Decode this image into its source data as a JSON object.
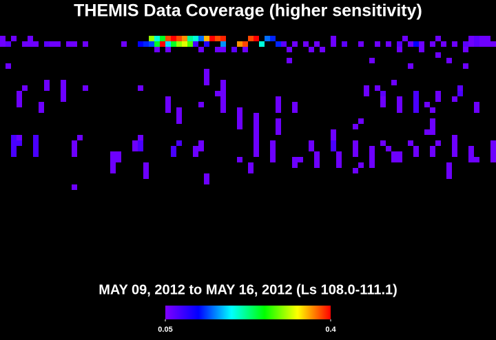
{
  "chart_data": {
    "type": "heatmap",
    "title": "THEMIS Data Coverage (higher sensitivity)",
    "subtitle": "MAY 09, 2012 to MAY 16, 2012 (Ls 108.0-111.1)",
    "clim": [
      0.05,
      0.4
    ],
    "cticks": [
      0.05,
      0.4
    ],
    "colormap": [
      "#7f00ff",
      "#0000ff",
      "#00ffff",
      "#00ff00",
      "#ffff00",
      "#ff0000"
    ],
    "rows": [
      {
        "y": 0,
        "x": [
          0,
          2,
          5,
          27,
          28,
          29,
          30,
          31,
          32,
          33,
          34,
          35,
          36,
          37,
          38,
          39,
          40,
          45,
          46,
          48,
          49,
          60,
          73,
          79,
          85,
          86,
          87,
          88
        ],
        "values": [
          0.06,
          0.06,
          0.06,
          0.3,
          0.2,
          0.25,
          0.38,
          0.4,
          0.38,
          0.36,
          0.22,
          0.2,
          0.15,
          0.35,
          0.4,
          0.38,
          0.39,
          0.38,
          0.4,
          0.15,
          0.13,
          0.06,
          0.06,
          0.06,
          0.06,
          0.07,
          0.06,
          0.06
        ]
      },
      {
        "y": 1,
        "x": [
          0,
          1,
          4,
          5,
          6,
          8,
          9,
          10,
          12,
          13,
          15,
          22,
          25,
          26,
          27,
          28,
          29,
          30,
          31,
          32,
          33,
          34,
          35,
          37,
          40,
          43,
          44,
          47,
          50,
          51,
          53,
          55,
          57,
          60,
          62,
          65,
          68,
          70,
          72,
          74,
          75,
          76,
          78,
          80,
          82,
          84,
          85,
          86,
          87,
          88,
          89
        ],
        "values": [
          0.06,
          0.07,
          0.06,
          0.06,
          0.06,
          0.07,
          0.06,
          0.06,
          0.06,
          0.06,
          0.06,
          0.06,
          0.12,
          0.13,
          0.14,
          0.25,
          0.4,
          0.18,
          0.25,
          0.3,
          0.32,
          0.28,
          0.08,
          0.1,
          0.16,
          0.36,
          0.38,
          0.2,
          0.13,
          0.07,
          0.06,
          0.06,
          0.06,
          0.06,
          0.07,
          0.06,
          0.06,
          0.06,
          0.07,
          0.06,
          0.12,
          0.06,
          0.06,
          0.06,
          0.06,
          0.07,
          0.06,
          0.07,
          0.06,
          0.06,
          0.06
        ]
      },
      {
        "y": 2,
        "x": [
          28,
          30,
          36,
          39,
          40,
          42,
          44,
          52,
          56,
          58,
          72,
          76,
          84
        ],
        "values": [
          0.06,
          0.06,
          0.06,
          0.06,
          0.06,
          0.07,
          0.06,
          0.06,
          0.06,
          0.06,
          0.06,
          0.06,
          0.06
        ]
      },
      {
        "y": 3,
        "x": [
          79
        ],
        "values": [
          0.06
        ]
      },
      {
        "y": 4,
        "x": [
          52,
          67,
          81
        ],
        "values": [
          0.06,
          0.06,
          0.06
        ]
      },
      {
        "y": 5,
        "x": [
          1,
          74,
          84
        ],
        "values": [
          0.06,
          0.06,
          0.06
        ]
      },
      {
        "y": 6,
        "x": [
          37
        ],
        "values": [
          0.06
        ]
      },
      {
        "y": 7,
        "x": [
          37
        ],
        "values": [
          0.06
        ]
      },
      {
        "y": 8,
        "x": [
          8,
          11,
          37,
          40,
          71
        ],
        "values": [
          0.06,
          0.06,
          0.06,
          0.06,
          0.06
        ]
      },
      {
        "y": 9,
        "x": [
          4,
          8,
          11,
          15,
          25,
          40,
          66,
          68,
          83
        ],
        "values": [
          0.06,
          0.06,
          0.06,
          0.06,
          0.06,
          0.06,
          0.06,
          0.06,
          0.07
        ]
      },
      {
        "y": 10,
        "x": [
          3,
          11,
          39,
          40,
          66,
          69,
          75,
          79,
          83
        ],
        "values": [
          0.06,
          0.06,
          0.06,
          0.06,
          0.06,
          0.07,
          0.08,
          0.06,
          0.08
        ]
      },
      {
        "y": 11,
        "x": [
          3,
          11,
          30,
          40,
          50,
          69,
          72,
          75,
          79,
          82
        ],
        "values": [
          0.06,
          0.06,
          0.06,
          0.06,
          0.06,
          0.06,
          0.06,
          0.08,
          0.06,
          0.06
        ]
      },
      {
        "y": 12,
        "x": [
          3,
          7,
          30,
          36,
          40,
          50,
          53,
          69,
          72,
          75,
          77,
          86
        ],
        "values": [
          0.06,
          0.06,
          0.06,
          0.06,
          0.06,
          0.06,
          0.06,
          0.06,
          0.06,
          0.08,
          0.06,
          0.06
        ]
      },
      {
        "y": 13,
        "x": [
          7,
          30,
          32,
          40,
          43,
          50,
          53,
          72,
          75,
          78,
          86
        ],
        "values": [
          0.06,
          0.06,
          0.06,
          0.06,
          0.06,
          0.06,
          0.06,
          0.06,
          0.08,
          0.06,
          0.06
        ]
      },
      {
        "y": 14,
        "x": [
          32,
          43,
          46
        ],
        "values": [
          0.06,
          0.06,
          0.06
        ]
      },
      {
        "y": 15,
        "x": [
          32,
          43,
          46,
          50,
          65,
          78
        ],
        "values": [
          0.06,
          0.06,
          0.06,
          0.06,
          0.06,
          0.06
        ]
      },
      {
        "y": 16,
        "x": [
          43,
          46,
          50,
          64,
          78
        ],
        "values": [
          0.06,
          0.06,
          0.06,
          0.06,
          0.06
        ]
      },
      {
        "y": 17,
        "x": [
          46,
          50,
          60,
          77,
          78
        ],
        "values": [
          0.06,
          0.06,
          0.06,
          0.06,
          0.06
        ]
      },
      {
        "y": 18,
        "x": [
          2,
          3,
          6,
          14,
          25,
          46,
          60,
          82
        ],
        "values": [
          0.08,
          0.06,
          0.08,
          0.06,
          0.06,
          0.06,
          0.06,
          0.06
        ]
      },
      {
        "y": 19,
        "x": [
          2,
          3,
          6,
          13,
          24,
          25,
          32,
          36,
          46,
          49,
          56,
          60,
          64,
          69,
          74,
          79,
          82,
          89
        ],
        "values": [
          0.08,
          0.08,
          0.08,
          0.06,
          0.06,
          0.08,
          0.08,
          0.06,
          0.06,
          0.06,
          0.06,
          0.08,
          0.06,
          0.06,
          0.06,
          0.06,
          0.06,
          0.06
        ]
      },
      {
        "y": 20,
        "x": [
          2,
          6,
          13,
          24,
          25,
          31,
          35,
          36,
          46,
          49,
          56,
          60,
          64,
          67,
          70,
          75,
          78,
          82,
          85,
          89
        ],
        "values": [
          0.08,
          0.08,
          0.06,
          0.06,
          0.08,
          0.08,
          0.06,
          0.06,
          0.06,
          0.06,
          0.06,
          0.08,
          0.06,
          0.06,
          0.06,
          0.06,
          0.06,
          0.06,
          0.06,
          0.06
        ]
      },
      {
        "y": 21,
        "x": [
          2,
          6,
          13,
          20,
          21,
          31,
          35,
          46,
          49,
          57,
          61,
          64,
          67,
          71,
          72,
          75,
          78,
          82,
          85,
          89
        ],
        "values": [
          0.08,
          0.08,
          0.06,
          0.06,
          0.06,
          0.08,
          0.06,
          0.06,
          0.06,
          0.06,
          0.06,
          0.06,
          0.06,
          0.06,
          0.06,
          0.06,
          0.06,
          0.06,
          0.06,
          0.06
        ]
      },
      {
        "y": 22,
        "x": [
          20,
          21,
          43,
          49,
          53,
          54,
          57,
          61,
          67,
          71,
          72,
          85,
          86,
          89
        ],
        "values": [
          0.06,
          0.06,
          0.06,
          0.06,
          0.06,
          0.06,
          0.06,
          0.06,
          0.06,
          0.06,
          0.06,
          0.06,
          0.06,
          0.06
        ]
      },
      {
        "y": 23,
        "x": [
          20,
          26,
          45,
          53,
          57,
          61,
          65,
          67,
          81
        ],
        "values": [
          0.06,
          0.06,
          0.06,
          0.06,
          0.06,
          0.06,
          0.06,
          0.06,
          0.06
        ]
      },
      {
        "y": 24,
        "x": [
          20,
          26,
          45,
          64,
          81
        ],
        "values": [
          0.06,
          0.06,
          0.06,
          0.06,
          0.06
        ]
      },
      {
        "y": 25,
        "x": [
          26,
          37,
          81
        ],
        "values": [
          0.06,
          0.06,
          0.06
        ]
      },
      {
        "y": 26,
        "x": [
          37
        ],
        "values": [
          0.06
        ]
      },
      {
        "y": 27,
        "x": [
          13
        ],
        "values": [
          0.06
        ]
      }
    ]
  }
}
